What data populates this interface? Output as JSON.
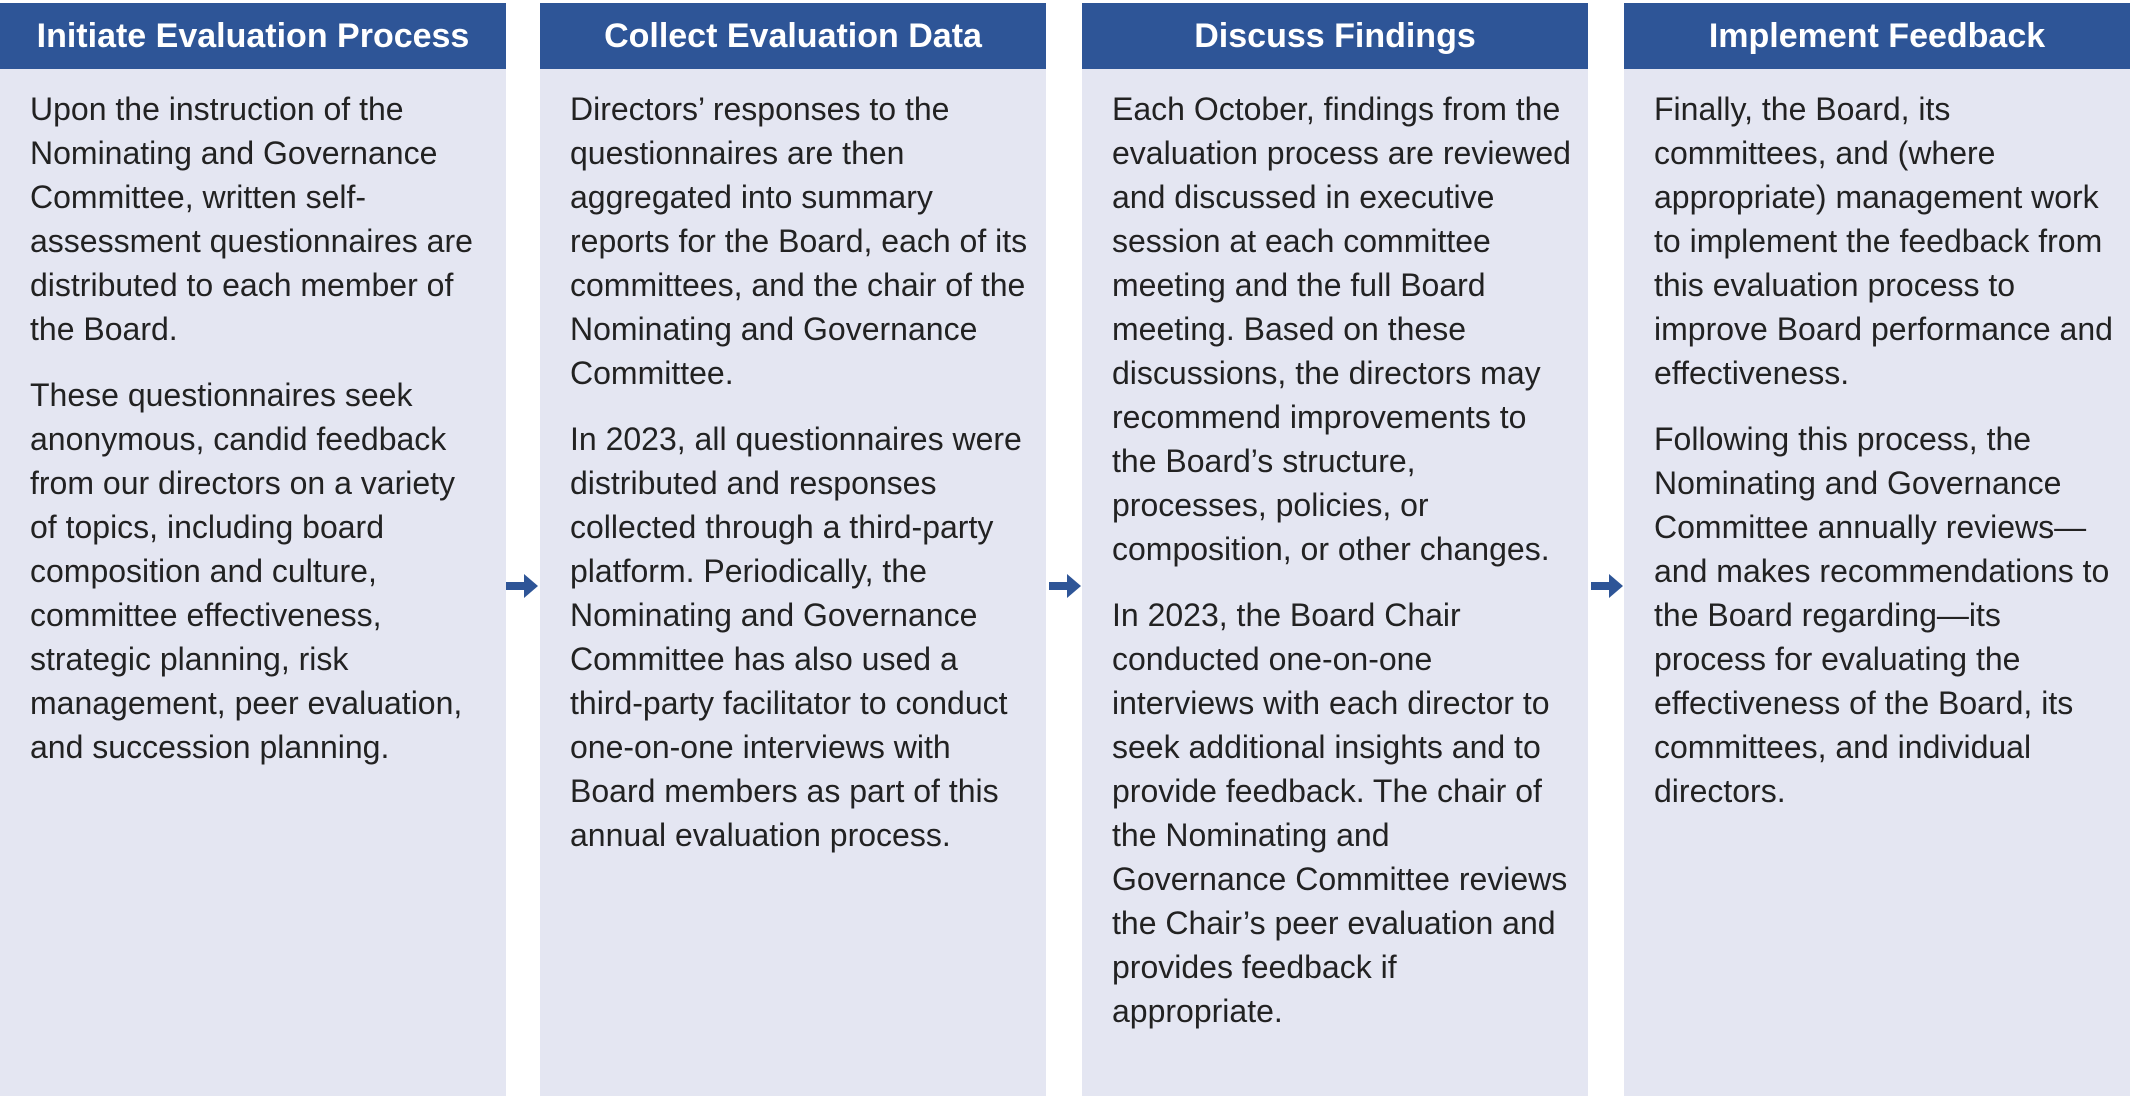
{
  "colors": {
    "header_bg": "#2e5597",
    "panel_bg": "#e4e6f2",
    "arrow": "#2e5597"
  },
  "steps": [
    {
      "title": "Initiate Evaluation Process",
      "paragraphs": [
        "Upon the instruction of the Nominating and Governance Committee, written self-assessment questionnaires are distributed to each member of the Board.",
        "These questionnaires seek anonymous, candid feedback from our directors on a variety of topics, including board composition and culture, committee effectiveness, strategic planning, risk management, peer evaluation, and succession planning."
      ]
    },
    {
      "title": "Collect Evaluation Data",
      "paragraphs": [
        "Directors’ responses to the questionnaires are then aggregated into summary reports for the Board, each of its committees, and the chair of the Nominating and Governance Committee.",
        "In 2023, all questionnaires were distributed and responses collected through a third-party platform. Periodically, the Nominating and Governance Committee has also used a third-party facilitator to conduct one-on-one interviews with Board members as part of this annual evaluation process."
      ]
    },
    {
      "title": "Discuss Findings",
      "paragraphs": [
        "Each October, findings from the evaluation process are reviewed and discussed in executive session at each committee meeting and the full Board meeting. Based on these discussions, the directors may recommend improvements to the Board’s structure, processes, policies, or composition, or other changes.",
        "In 2023, the Board Chair conducted one-on-one interviews with each director to seek additional insights and to provide feedback. The chair of the Nominating and Governance Committee reviews the Chair’s peer evaluation and provides feedback if appropriate."
      ]
    },
    {
      "title": "Implement Feedback",
      "paragraphs": [
        "Finally, the Board, its committees, and (where appropriate) management work to implement the feedback from this evaluation process to improve Board performance and effectiveness.",
        "Following this process, the Nominating and Governance Committee annually reviews—and makes recommendations to the Board regarding—its process for evaluating the effectiveness of the Board, its committees, and individual directors."
      ]
    }
  ],
  "arrows": [
    {
      "icon": "arrow-right-icon"
    },
    {
      "icon": "arrow-right-icon"
    },
    {
      "icon": "arrow-right-icon"
    }
  ]
}
